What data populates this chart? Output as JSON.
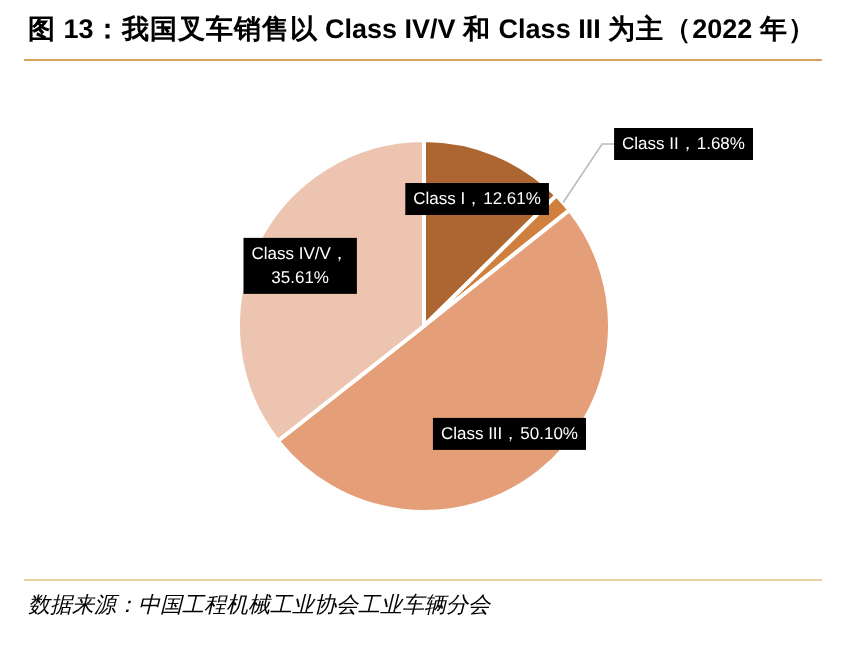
{
  "chart_data": {
    "type": "pie",
    "title": "图 13：我国叉车销售以 Class IV/V 和 Class III 为主（2022 年）",
    "categories": [
      "Class I",
      "Class II",
      "Class III",
      "Class IV/V"
    ],
    "values": [
      12.61,
      1.68,
      50.1,
      35.61
    ],
    "value_labels": [
      "，12.61%",
      "，1.68%",
      "，50.10%",
      "，35.61%"
    ],
    "colors": [
      "#ad6632",
      "#d0803e",
      "#e49e78",
      "#edc4b0"
    ],
    "legend": false,
    "annotations": [
      "数据来源：中国工程机械工业协会工业车辆分会"
    ]
  }
}
